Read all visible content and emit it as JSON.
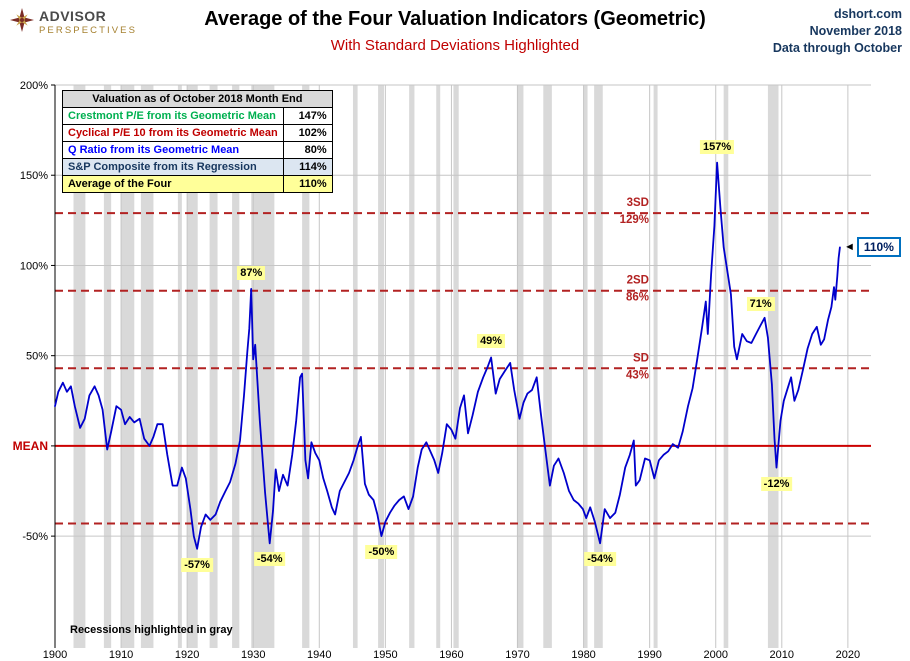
{
  "header": {
    "logo": {
      "line1": "ADVISOR",
      "line2": "PERSPECTIVES"
    },
    "title": "Average of the Four Valuation Indicators (Geometric)",
    "subtitle": "With Standard Deviations Highlighted",
    "source": {
      "site": "dshort.com",
      "date": "November 2018",
      "note": "Data through October"
    }
  },
  "legend_table": {
    "header": "Valuation as of October 2018 Month End",
    "rows": [
      {
        "label": "Crestmont P/E from its Geometric Mean",
        "value": "147%",
        "color": "#00B050",
        "bg": "#FFFFFF"
      },
      {
        "label": "Cyclical P/E 10 from its Geometric Mean",
        "value": "102%",
        "color": "#C00000",
        "bg": "#FFFFFF"
      },
      {
        "label": "Q Ratio from its Geometric Mean",
        "value": "80%",
        "color": "#0000FF",
        "bg": "#FFFFFF"
      },
      {
        "label": "S&P Composite from its Regression",
        "value": "114%",
        "color": "#17375E",
        "bg": "#DCE6F1"
      },
      {
        "label": "Average of the Four",
        "value": "110%",
        "color": "#000000",
        "bg": "#FFFF99"
      }
    ]
  },
  "footnote": "Recessions highlighted in gray",
  "chart_data": {
    "type": "line",
    "title": "Average of the Four Valuation Indicators (Geometric)",
    "xlabel": "",
    "ylabel": "",
    "xlim": [
      1900,
      2023.5
    ],
    "ylim": [
      -112,
      200
    ],
    "x_ticks": [
      1900,
      1910,
      1920,
      1930,
      1940,
      1950,
      1960,
      1970,
      1980,
      1990,
      2000,
      2010,
      2020
    ],
    "y_ticks": [
      {
        "v": 200,
        "label": "200%"
      },
      {
        "v": 150,
        "label": "150%"
      },
      {
        "v": 100,
        "label": "100%"
      },
      {
        "v": 50,
        "label": "50%"
      },
      {
        "v": 0,
        "label": "MEAN"
      },
      {
        "v": -50,
        "label": "-50%"
      }
    ],
    "colors": {
      "recession": "#D9D9D9",
      "grid": "#C6C6C6",
      "mean": "#CC0000",
      "sd": "#B22222",
      "series": "#0000CC"
    },
    "sd_lines": [
      {
        "value": 129,
        "label1": "3SD",
        "label2": "129%"
      },
      {
        "value": 86,
        "label1": "2SD",
        "label2": "86%"
      },
      {
        "value": 43,
        "label1": "SD",
        "label2": "43%"
      },
      {
        "value": -43
      }
    ],
    "sd_label_x": 1989.9,
    "recessions": [
      [
        1902.8,
        1904.6
      ],
      [
        1907.4,
        1908.5
      ],
      [
        1910.0,
        1912.0
      ],
      [
        1913.0,
        1914.9
      ],
      [
        1918.6,
        1919.2
      ],
      [
        1920.0,
        1921.6
      ],
      [
        1923.4,
        1924.6
      ],
      [
        1926.8,
        1927.9
      ],
      [
        1929.7,
        1933.2
      ],
      [
        1937.4,
        1938.5
      ],
      [
        1945.1,
        1945.8
      ],
      [
        1948.9,
        1949.8
      ],
      [
        1953.6,
        1954.4
      ],
      [
        1957.7,
        1958.3
      ],
      [
        1960.3,
        1961.1
      ],
      [
        1969.9,
        1970.9
      ],
      [
        1973.9,
        1975.2
      ],
      [
        1980.0,
        1980.6
      ],
      [
        1981.6,
        1982.9
      ],
      [
        1990.6,
        1991.2
      ],
      [
        2001.2,
        2001.9
      ],
      [
        2007.9,
        2009.5
      ]
    ],
    "series": [
      {
        "name": "Average of the Four Valuation Indicators",
        "color": "#0000CC",
        "points": [
          [
            1900.0,
            22
          ],
          [
            1900.5,
            30
          ],
          [
            1901.2,
            35
          ],
          [
            1901.8,
            30
          ],
          [
            1902.4,
            33
          ],
          [
            1903.0,
            22
          ],
          [
            1903.8,
            10
          ],
          [
            1904.5,
            15
          ],
          [
            1905.2,
            28
          ],
          [
            1906.0,
            33
          ],
          [
            1906.6,
            28
          ],
          [
            1907.2,
            20
          ],
          [
            1907.9,
            -2
          ],
          [
            1908.5,
            8
          ],
          [
            1909.3,
            22
          ],
          [
            1910.0,
            20
          ],
          [
            1910.6,
            12
          ],
          [
            1911.3,
            16
          ],
          [
            1912.0,
            13
          ],
          [
            1912.8,
            15
          ],
          [
            1913.5,
            4
          ],
          [
            1914.3,
            0
          ],
          [
            1914.9,
            5
          ],
          [
            1915.5,
            12
          ],
          [
            1916.3,
            12
          ],
          [
            1917.0,
            -5
          ],
          [
            1917.8,
            -22
          ],
          [
            1918.5,
            -22
          ],
          [
            1919.2,
            -12
          ],
          [
            1919.8,
            -18
          ],
          [
            1920.5,
            -35
          ],
          [
            1921.0,
            -50
          ],
          [
            1921.5,
            -57
          ],
          [
            1922.1,
            -45
          ],
          [
            1922.8,
            -38
          ],
          [
            1923.5,
            -41
          ],
          [
            1924.3,
            -38
          ],
          [
            1925.0,
            -31
          ],
          [
            1925.8,
            -25
          ],
          [
            1926.5,
            -20
          ],
          [
            1927.3,
            -10
          ],
          [
            1928.0,
            3
          ],
          [
            1928.6,
            28
          ],
          [
            1929.1,
            52
          ],
          [
            1929.4,
            65
          ],
          [
            1929.7,
            87
          ],
          [
            1930.0,
            48
          ],
          [
            1930.3,
            56
          ],
          [
            1931.0,
            14
          ],
          [
            1931.8,
            -26
          ],
          [
            1932.5,
            -54
          ],
          [
            1933.0,
            -36
          ],
          [
            1933.4,
            -13
          ],
          [
            1933.9,
            -25
          ],
          [
            1934.5,
            -16
          ],
          [
            1935.2,
            -22
          ],
          [
            1935.9,
            -5
          ],
          [
            1936.5,
            14
          ],
          [
            1937.1,
            38
          ],
          [
            1937.4,
            40
          ],
          [
            1937.9,
            -8
          ],
          [
            1938.3,
            -18
          ],
          [
            1938.8,
            2
          ],
          [
            1939.4,
            -4
          ],
          [
            1940.0,
            -8
          ],
          [
            1940.6,
            -18
          ],
          [
            1941.2,
            -25
          ],
          [
            1941.9,
            -34
          ],
          [
            1942.4,
            -38
          ],
          [
            1943.1,
            -25
          ],
          [
            1943.8,
            -20
          ],
          [
            1944.5,
            -15
          ],
          [
            1945.2,
            -8
          ],
          [
            1945.9,
            1
          ],
          [
            1946.3,
            5
          ],
          [
            1946.9,
            -21
          ],
          [
            1947.5,
            -27
          ],
          [
            1948.2,
            -30
          ],
          [
            1948.8,
            -38
          ],
          [
            1949.4,
            -50
          ],
          [
            1950.0,
            -42
          ],
          [
            1950.7,
            -37
          ],
          [
            1951.4,
            -33
          ],
          [
            1952.1,
            -30
          ],
          [
            1952.8,
            -28
          ],
          [
            1953.5,
            -35
          ],
          [
            1954.2,
            -28
          ],
          [
            1954.9,
            -12
          ],
          [
            1955.5,
            -2
          ],
          [
            1956.2,
            2
          ],
          [
            1956.8,
            -3
          ],
          [
            1957.4,
            -8
          ],
          [
            1958.0,
            -15
          ],
          [
            1958.6,
            -4
          ],
          [
            1959.3,
            12
          ],
          [
            1960.0,
            9
          ],
          [
            1960.6,
            4
          ],
          [
            1961.3,
            21
          ],
          [
            1961.9,
            28
          ],
          [
            1962.5,
            7
          ],
          [
            1963.2,
            17
          ],
          [
            1964.0,
            30
          ],
          [
            1964.8,
            38
          ],
          [
            1965.5,
            44
          ],
          [
            1966.0,
            49
          ],
          [
            1966.7,
            29
          ],
          [
            1967.3,
            37
          ],
          [
            1968.0,
            41
          ],
          [
            1968.9,
            46
          ],
          [
            1969.5,
            31
          ],
          [
            1970.3,
            15
          ],
          [
            1970.9,
            24
          ],
          [
            1971.5,
            29
          ],
          [
            1972.2,
            31
          ],
          [
            1972.9,
            38
          ],
          [
            1973.5,
            19
          ],
          [
            1974.2,
            -2
          ],
          [
            1974.9,
            -22
          ],
          [
            1975.5,
            -11
          ],
          [
            1976.2,
            -7
          ],
          [
            1977.0,
            -15
          ],
          [
            1977.8,
            -25
          ],
          [
            1978.5,
            -30
          ],
          [
            1979.2,
            -32
          ],
          [
            1979.9,
            -35
          ],
          [
            1980.4,
            -40
          ],
          [
            1981.0,
            -34
          ],
          [
            1981.7,
            -42
          ],
          [
            1982.5,
            -54
          ],
          [
            1983.2,
            -35
          ],
          [
            1984.0,
            -40
          ],
          [
            1984.8,
            -37
          ],
          [
            1985.5,
            -27
          ],
          [
            1986.3,
            -12
          ],
          [
            1987.0,
            -5
          ],
          [
            1987.6,
            3
          ],
          [
            1987.9,
            -22
          ],
          [
            1988.5,
            -19
          ],
          [
            1989.3,
            -7
          ],
          [
            1990.0,
            -8
          ],
          [
            1990.7,
            -18
          ],
          [
            1991.4,
            -8
          ],
          [
            1992.1,
            -5
          ],
          [
            1992.8,
            -3
          ],
          [
            1993.5,
            1
          ],
          [
            1994.3,
            -1
          ],
          [
            1995.0,
            8
          ],
          [
            1995.8,
            22
          ],
          [
            1996.5,
            32
          ],
          [
            1997.2,
            48
          ],
          [
            1997.9,
            65
          ],
          [
            1998.5,
            80
          ],
          [
            1998.8,
            62
          ],
          [
            1999.3,
            95
          ],
          [
            1999.8,
            122
          ],
          [
            2000.2,
            157
          ],
          [
            2000.7,
            132
          ],
          [
            2001.2,
            110
          ],
          [
            2001.8,
            96
          ],
          [
            2002.3,
            84
          ],
          [
            2002.8,
            55
          ],
          [
            2003.2,
            48
          ],
          [
            2004.0,
            62
          ],
          [
            2004.7,
            58
          ],
          [
            2005.4,
            57
          ],
          [
            2006.1,
            62
          ],
          [
            2006.8,
            67
          ],
          [
            2007.4,
            71
          ],
          [
            2007.9,
            60
          ],
          [
            2008.5,
            34
          ],
          [
            2008.9,
            4
          ],
          [
            2009.2,
            -12
          ],
          [
            2009.8,
            14
          ],
          [
            2010.3,
            25
          ],
          [
            2010.9,
            32
          ],
          [
            2011.4,
            38
          ],
          [
            2011.9,
            25
          ],
          [
            2012.5,
            31
          ],
          [
            2013.2,
            42
          ],
          [
            2013.9,
            54
          ],
          [
            2014.6,
            62
          ],
          [
            2015.3,
            66
          ],
          [
            2015.9,
            56
          ],
          [
            2016.4,
            59
          ],
          [
            2017.0,
            70
          ],
          [
            2017.5,
            77
          ],
          [
            2017.9,
            88
          ],
          [
            2018.1,
            81
          ],
          [
            2018.4,
            94
          ],
          [
            2018.6,
            104
          ],
          [
            2018.8,
            110
          ]
        ]
      }
    ],
    "annotations": [
      {
        "text": "87%",
        "x": 1929.7,
        "y": 87,
        "dy": -16
      },
      {
        "text": "-57%",
        "x": 1921.5,
        "y": -57,
        "dy": 16
      },
      {
        "text": "-54%",
        "x": 1932.5,
        "y": -54,
        "dy": 16
      },
      {
        "text": "-50%",
        "x": 1949.4,
        "y": -50,
        "dy": 16
      },
      {
        "text": "49%",
        "x": 1966.0,
        "y": 49,
        "dy": -16
      },
      {
        "text": "-54%",
        "x": 1982.5,
        "y": -54,
        "dy": 16
      },
      {
        "text": "157%",
        "x": 2000.2,
        "y": 157,
        "dy": -16
      },
      {
        "text": "71%",
        "x": 2007.4,
        "y": 71,
        "dy": -14,
        "dx": -4
      },
      {
        "text": "-12%",
        "x": 2009.2,
        "y": -12,
        "dy": 16
      }
    ],
    "current_callout": {
      "text": "110%",
      "x": 2018.8,
      "y": 110,
      "arrow": "◄"
    }
  }
}
